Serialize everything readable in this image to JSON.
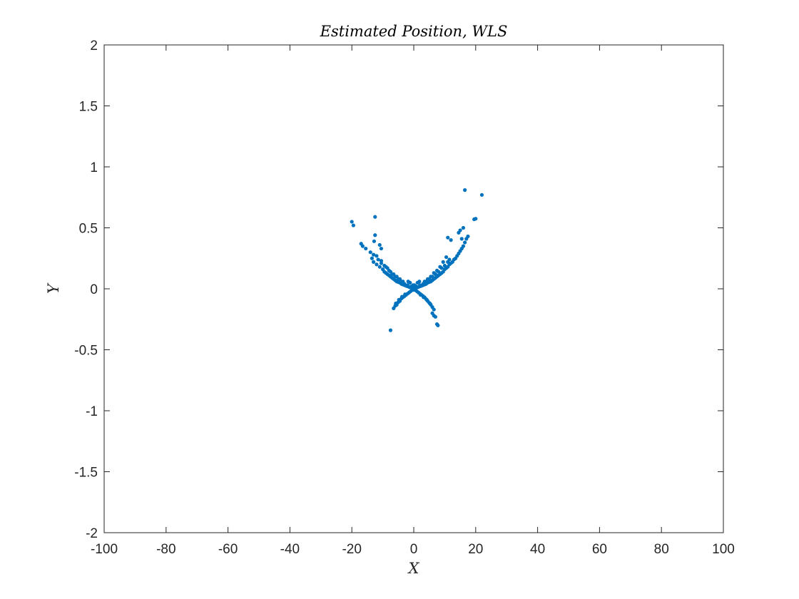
{
  "chart_data": {
    "type": "scatter",
    "title": "Estimated Position, WLS",
    "xlabel": "X",
    "ylabel": "Y",
    "xlim": [
      -100,
      100
    ],
    "ylim": [
      -2,
      2
    ],
    "x_ticks": [
      -100,
      -80,
      -60,
      -40,
      -20,
      0,
      20,
      40,
      60,
      80,
      100
    ],
    "y_ticks": [
      -2,
      -1.5,
      -1,
      -0.5,
      0,
      0.5,
      1,
      1.5,
      2
    ],
    "grid": false,
    "marker_color": "#0072BD",
    "series": [
      {
        "points": [
          [
            16.5,
            0.81
          ],
          [
            22,
            0.77
          ],
          [
            19.5,
            0.57
          ],
          [
            20,
            0.575
          ],
          [
            -20,
            0.55
          ],
          [
            -19.5,
            0.52
          ],
          [
            -12.5,
            0.59
          ],
          [
            -12.5,
            0.44
          ],
          [
            -12.8,
            0.39
          ],
          [
            -17,
            0.37
          ],
          [
            -16.5,
            0.35
          ],
          [
            -15.5,
            0.33
          ],
          [
            -11,
            0.36
          ],
          [
            -10.5,
            0.33
          ],
          [
            -14,
            0.3
          ],
          [
            -13,
            0.28
          ],
          [
            -12,
            0.27
          ],
          [
            -11.5,
            0.24
          ],
          [
            -10.5,
            0.23
          ],
          [
            -13.5,
            0.25
          ],
          [
            -13,
            0.22
          ],
          [
            -12,
            0.2
          ],
          [
            -11,
            0.18
          ],
          [
            -10,
            0.16
          ],
          [
            -9.5,
            0.14
          ],
          [
            -9,
            0.13
          ],
          [
            -8.5,
            0.12
          ],
          [
            -8,
            0.11
          ],
          [
            -7.5,
            0.1
          ],
          [
            -7,
            0.09
          ],
          [
            -6.5,
            0.08
          ],
          [
            -6,
            0.07
          ],
          [
            -5.5,
            0.06
          ],
          [
            -5,
            0.055
          ],
          [
            -4.5,
            0.05
          ],
          [
            -4,
            0.04
          ],
          [
            -3.5,
            0.035
          ],
          [
            -3,
            0.03
          ],
          [
            -2.5,
            0.025
          ],
          [
            -2,
            0.02
          ],
          [
            -1.5,
            0.015
          ],
          [
            -1,
            0.01
          ],
          [
            -0.5,
            0.005
          ],
          [
            0,
            0
          ],
          [
            0.5,
            0.005
          ],
          [
            1,
            0.01
          ],
          [
            1.5,
            0.015
          ],
          [
            2,
            0.02
          ],
          [
            2.5,
            0.025
          ],
          [
            3,
            0.03
          ],
          [
            3.5,
            0.035
          ],
          [
            4,
            0.04
          ],
          [
            4.5,
            0.05
          ],
          [
            5,
            0.055
          ],
          [
            5.5,
            0.06
          ],
          [
            6,
            0.07
          ],
          [
            6.5,
            0.08
          ],
          [
            7,
            0.09
          ],
          [
            7.5,
            0.1
          ],
          [
            8,
            0.11
          ],
          [
            8.5,
            0.12
          ],
          [
            9,
            0.13
          ],
          [
            9.5,
            0.14
          ],
          [
            10,
            0.16
          ],
          [
            10.5,
            0.17
          ],
          [
            11,
            0.18
          ],
          [
            11.5,
            0.2
          ],
          [
            12,
            0.21
          ],
          [
            12.5,
            0.22
          ],
          [
            13,
            0.24
          ],
          [
            13.5,
            0.25
          ],
          [
            14,
            0.27
          ],
          [
            14.5,
            0.29
          ],
          [
            15,
            0.31
          ],
          [
            15.5,
            0.33
          ],
          [
            16,
            0.35
          ],
          [
            16.5,
            0.38
          ],
          [
            17,
            0.41
          ],
          [
            17.5,
            0.43
          ],
          [
            16,
            0.5
          ],
          [
            15,
            0.48
          ],
          [
            14.5,
            0.46
          ],
          [
            15.5,
            0.41
          ],
          [
            11,
            0.42
          ],
          [
            12,
            0.4
          ],
          [
            10.5,
            0.26
          ],
          [
            11.5,
            0.24
          ],
          [
            9.5,
            0.22
          ],
          [
            8.5,
            0.18
          ],
          [
            7.5,
            0.15
          ],
          [
            6.5,
            0.13
          ],
          [
            5.5,
            0.1
          ],
          [
            4.5,
            0.08
          ],
          [
            3.5,
            0.06
          ],
          [
            -3.5,
            0.06
          ],
          [
            -4.5,
            0.08
          ],
          [
            -5.5,
            0.1
          ],
          [
            -6.5,
            0.12
          ],
          [
            -7.5,
            0.14
          ],
          [
            -8.5,
            0.17
          ],
          [
            -9.5,
            0.19
          ],
          [
            -10.5,
            0.21
          ],
          [
            -8,
            0.15
          ],
          [
            -9,
            0.18
          ],
          [
            -7,
            0.12
          ],
          [
            -6,
            0.1
          ],
          [
            -5,
            0.08
          ],
          [
            -4,
            0.06
          ],
          [
            -3,
            0.04
          ],
          [
            -2,
            0.03
          ],
          [
            2,
            0.03
          ],
          [
            3,
            0.04
          ],
          [
            4,
            0.06
          ],
          [
            5,
            0.08
          ],
          [
            6,
            0.1
          ],
          [
            7,
            0.12
          ],
          [
            8,
            0.14
          ],
          [
            9,
            0.17
          ],
          [
            10,
            0.19
          ],
          [
            11,
            0.22
          ],
          [
            -1,
            -0.02
          ],
          [
            -1.5,
            -0.03
          ],
          [
            -2,
            -0.04
          ],
          [
            -2.5,
            -0.05
          ],
          [
            -3,
            -0.06
          ],
          [
            -3.5,
            -0.07
          ],
          [
            -4,
            -0.08
          ],
          [
            -4.5,
            -0.1
          ],
          [
            -5,
            -0.11
          ],
          [
            -5.5,
            -0.13
          ],
          [
            -6,
            -0.14
          ],
          [
            -6.5,
            -0.16
          ],
          [
            -5.8,
            -0.12
          ],
          [
            -4.8,
            -0.09
          ],
          [
            -3.8,
            -0.065
          ],
          [
            -2.8,
            -0.045
          ],
          [
            -7.5,
            -0.34
          ],
          [
            1,
            -0.02
          ],
          [
            1.5,
            -0.03
          ],
          [
            2,
            -0.04
          ],
          [
            2.5,
            -0.05
          ],
          [
            3,
            -0.06
          ],
          [
            3.5,
            -0.07
          ],
          [
            4,
            -0.085
          ],
          [
            4.5,
            -0.1
          ],
          [
            5,
            -0.115
          ],
          [
            5.5,
            -0.13
          ],
          [
            6,
            -0.15
          ],
          [
            6.5,
            -0.17
          ],
          [
            5.2,
            -0.12
          ],
          [
            4.2,
            -0.09
          ],
          [
            3.2,
            -0.07
          ],
          [
            2.2,
            -0.05
          ],
          [
            6,
            -0.2
          ],
          [
            6.5,
            -0.22
          ],
          [
            7,
            -0.23
          ],
          [
            7.5,
            -0.29
          ],
          [
            7.8,
            -0.3
          ],
          [
            -0.8,
            0.02
          ],
          [
            0.8,
            0.02
          ],
          [
            -0.3,
            -0.01
          ],
          [
            0.3,
            -0.01
          ],
          [
            0.2,
            0.03
          ],
          [
            -0.2,
            0.03
          ],
          [
            -1.2,
            0.05
          ],
          [
            1.2,
            0.05
          ],
          [
            -1.8,
            0.06
          ],
          [
            1.8,
            0.06
          ]
        ]
      }
    ]
  }
}
